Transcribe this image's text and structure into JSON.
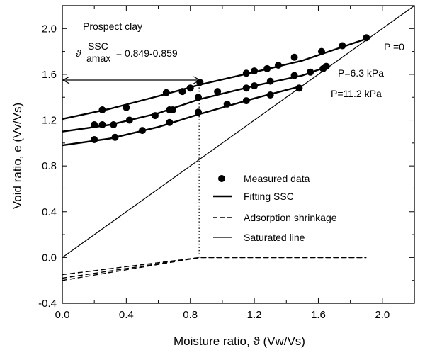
{
  "chart_data": {
    "type": "scatter",
    "title": "Prospect clay",
    "xlabel": "Moisture ratio, ϑ (Vw/Vs)",
    "ylabel": "Void ratio, e (Vv/Vs)",
    "xlim": [
      0.0,
      2.2
    ],
    "ylim": [
      -0.4,
      2.2
    ],
    "x_ticks": [
      0.0,
      0.4,
      0.8,
      1.2,
      1.6,
      2.0
    ],
    "x_tick_labels": [
      "0.0",
      "0.4",
      "0.8",
      "1.2",
      "1.6",
      "2.0"
    ],
    "y_ticks": [
      -0.4,
      0.0,
      0.4,
      0.8,
      1.2,
      1.6,
      2.0
    ],
    "y_tick_labels": [
      "-0.4",
      "0.0",
      "0.4",
      "0.8",
      "1.2",
      "1.6",
      "2.0"
    ],
    "x_tick_step": 0.2,
    "y_tick_step": 0.2,
    "range_annotation": {
      "symbol": "ϑ",
      "superscript": "SSC",
      "subscript": "amax",
      "value_text": " = 0.849-0.859",
      "x_start": 0.0,
      "x_end": 0.86,
      "y": 1.55
    },
    "vertical_dotted_line": {
      "x": 0.855,
      "y_from": 0.0,
      "y_to": 1.5
    },
    "saturated_line": {
      "label": "Saturated line",
      "x": [
        0.0,
        2.2
      ],
      "y": [
        0.0,
        2.2
      ]
    },
    "series": [
      {
        "name": "P =0",
        "label_text": "P =0",
        "label_anchor": [
          1.92,
          1.85
        ],
        "measured": [
          [
            0.25,
            1.29
          ],
          [
            0.4,
            1.31
          ],
          [
            0.65,
            1.44
          ],
          [
            0.75,
            1.45
          ],
          [
            0.8,
            1.48
          ],
          [
            0.86,
            1.53
          ],
          [
            1.15,
            1.61
          ],
          [
            1.2,
            1.63
          ],
          [
            1.28,
            1.65
          ],
          [
            1.35,
            1.68
          ],
          [
            1.45,
            1.75
          ],
          [
            1.62,
            1.8
          ],
          [
            1.75,
            1.85
          ],
          [
            1.9,
            1.92
          ]
        ],
        "fit": {
          "x": [
            0.0,
            0.3,
            0.6,
            0.86,
            1.2,
            1.5,
            1.92
          ],
          "y": [
            1.21,
            1.3,
            1.41,
            1.51,
            1.62,
            1.72,
            1.92
          ]
        },
        "shrinkage": {
          "x": [
            0.0,
            0.86,
            1.9
          ],
          "y": [
            -0.15,
            0.0,
            0.0
          ]
        }
      },
      {
        "name": "P=6.3 kPa",
        "label_text": "P=6.3 kPa",
        "label_anchor": [
          1.72,
          1.68
        ],
        "measured": [
          [
            0.2,
            1.16
          ],
          [
            0.25,
            1.16
          ],
          [
            0.32,
            1.16
          ],
          [
            0.42,
            1.2
          ],
          [
            0.58,
            1.24
          ],
          [
            0.67,
            1.29
          ],
          [
            0.69,
            1.29
          ],
          [
            0.85,
            1.4
          ],
          [
            0.97,
            1.45
          ],
          [
            1.15,
            1.48
          ],
          [
            1.2,
            1.5
          ],
          [
            1.3,
            1.54
          ],
          [
            1.45,
            1.59
          ],
          [
            1.55,
            1.62
          ],
          [
            1.63,
            1.65
          ],
          [
            1.65,
            1.67
          ]
        ],
        "fit": {
          "x": [
            0.0,
            0.3,
            0.6,
            0.85,
            1.2,
            1.5,
            1.66
          ],
          "y": [
            1.1,
            1.16,
            1.26,
            1.38,
            1.5,
            1.59,
            1.67
          ]
        },
        "shrinkage": {
          "x": [
            0.0,
            0.86,
            1.9
          ],
          "y": [
            -0.18,
            0.0,
            0.0
          ]
        }
      },
      {
        "name": "P=11.2 kPa",
        "label_text": "P=11.2 kPa",
        "label_anchor": [
          1.55,
          1.48
        ],
        "measured": [
          [
            0.2,
            1.03
          ],
          [
            0.33,
            1.05
          ],
          [
            0.5,
            1.11
          ],
          [
            0.67,
            1.18
          ],
          [
            0.85,
            1.27
          ],
          [
            1.03,
            1.34
          ],
          [
            1.15,
            1.37
          ],
          [
            1.3,
            1.42
          ],
          [
            1.48,
            1.48
          ]
        ],
        "fit": {
          "x": [
            0.0,
            0.3,
            0.6,
            0.85,
            1.2,
            1.5
          ],
          "y": [
            0.98,
            1.04,
            1.14,
            1.25,
            1.39,
            1.5
          ]
        },
        "shrinkage": {
          "x": [
            0.0,
            0.86,
            1.9
          ],
          "y": [
            -0.2,
            0.0,
            0.0
          ]
        }
      }
    ],
    "legend": {
      "placement": "inside-lower-right",
      "entries": [
        {
          "kind": "marker",
          "label": "Measured data"
        },
        {
          "kind": "thick-line",
          "label": "Fitting SSC"
        },
        {
          "kind": "dashed-line",
          "label": "Adsorption shrinkage"
        },
        {
          "kind": "thin-line",
          "label": "Saturated line"
        }
      ]
    }
  }
}
